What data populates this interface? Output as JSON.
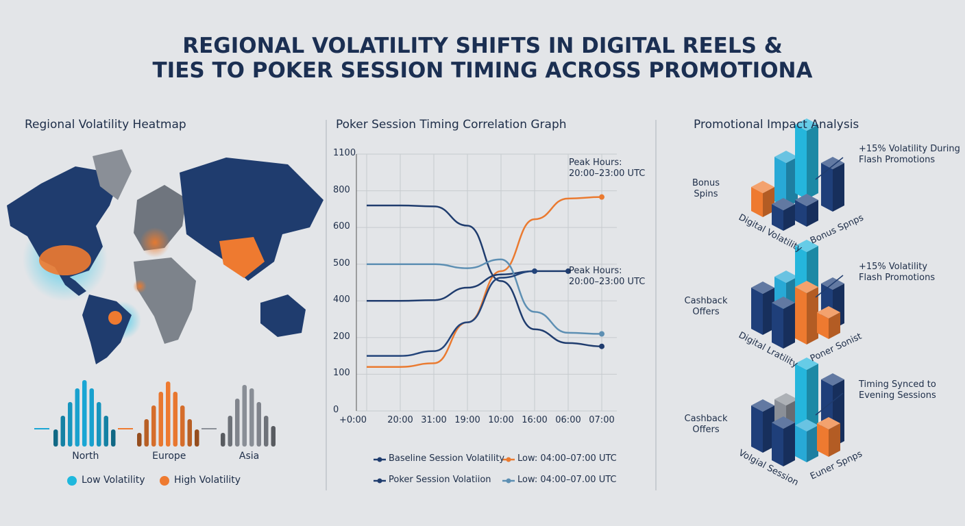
{
  "title_lines": [
    "REGIONAL VOLATILITY SHIFTS IN DIGITAL REELS &",
    "TIES TO POKER SESSION TIMING ACROSS PROMOTIONA"
  ],
  "chart_data": [
    {
      "type": "heatmap",
      "title": "Regional Volatility Heatmap",
      "regions": [
        {
          "name": "North",
          "color": "#1aa6d4",
          "values": [
            25,
            45,
            65,
            85,
            97,
            85,
            65,
            45,
            25
          ]
        },
        {
          "name": "Europe",
          "color": "#ee7a30",
          "values": [
            20,
            40,
            60,
            80,
            95,
            80,
            60,
            40,
            25
          ]
        },
        {
          "name": "Asia",
          "color": "#8a8f97",
          "values": [
            20,
            45,
            70,
            90,
            85,
            65,
            45,
            30
          ]
        }
      ],
      "legend": [
        {
          "name": "Low Volatility",
          "color": "#1fb8dd"
        },
        {
          "name": "High Volatility",
          "color": "#ee7a30"
        }
      ]
    },
    {
      "type": "line",
      "title": "Poker Session Timing Correlation Graph",
      "categories": [
        "+0:00",
        "20:00",
        "31:00",
        "19:00",
        "10:00",
        "16:00",
        "06:00",
        "07:00"
      ],
      "ylim": [
        0,
        1100
      ],
      "yticks": [
        0,
        100,
        200,
        400,
        500,
        600,
        800,
        1100
      ],
      "grid": true,
      "series": [
        {
          "name": "Baseline Session Volatility",
          "color": "#1f3c6e",
          "values": [
            720,
            720,
            715,
            610,
            454,
            245,
            185,
            176
          ]
        },
        {
          "name": "Low: 04:00–07:00 UTC",
          "color": "#ea7a30",
          "values": [
            120,
            120,
            130,
            283,
            481,
            645,
            758,
            766
          ]
        },
        {
          "name": "Poker Session Volatiion",
          "color": "#1f3c6e",
          "values": [
            400,
            400,
            402,
            436,
            472,
            481,
            481,
            null
          ]
        },
        {
          "name": "Low: 04:00–07.00 UTC",
          "color": "#5d8fb3",
          "values": [
            500,
            500,
            500,
            489,
            513,
            340,
            226,
            220
          ]
        },
        {
          "color": "#23447a",
          "values": [
            150,
            150,
            163,
            283,
            463,
            481,
            null,
            null
          ]
        }
      ],
      "annotations": [
        "Peak Hours:\n20:00–23:00 UTC",
        "Peak Hours:\n20:00–23:00 UTC"
      ]
    },
    {
      "type": "bar3d",
      "title": "Promotional Impact Analysis",
      "groups": [
        {
          "label": "Bonus\nSpins",
          "annotation": "+15% Volatility During\nFlash Promotions",
          "x_label": "Digital Volatility",
          "y_label": "Bonus Spnps",
          "bars": [
            {
              "color": "#ee7a30",
              "value": 35
            },
            {
              "color": "#28a9d6",
              "value": 65
            },
            {
              "color": "#25b6dc",
              "value": 100
            },
            {
              "color": "#1f3f7a",
              "value": 62
            },
            {
              "color": "#1f3f7a",
              "value": 30
            },
            {
              "color": "#1f3f7a",
              "value": 30
            }
          ]
        },
        {
          "label": "Cashback\nOffers",
          "annotation": "+15% Volatility\nFlash Promotions",
          "x_label": "Digital Lratility",
          "y_label": "Poner Sonist",
          "bars": [
            {
              "color": "#1f3f7a",
              "value": 60
            },
            {
              "color": "#28a9d6",
              "value": 62
            },
            {
              "color": "#25b6dc",
              "value": 95
            },
            {
              "color": "#1f3f7a",
              "value": 58
            },
            {
              "color": "#1f3f7a",
              "value": 58
            },
            {
              "color": "#ee7a30",
              "value": 75
            },
            {
              "color": "#ee7a30",
              "value": 30
            }
          ]
        },
        {
          "label": "Cashback\nOffers",
          "annotation": "Timing Synced to\nEvening Sessions",
          "x_label": "Volgial Session",
          "y_label": "Euner Spnps",
          "bars": [
            {
              "color": "#1f3f7a",
              "value": 60
            },
            {
              "color": "#8a8f97",
              "value": 55
            },
            {
              "color": "#25b6dc",
              "value": 95
            },
            {
              "color": "#1f3f7a",
              "value": 90
            },
            {
              "color": "#1f3f7a",
              "value": 55
            },
            {
              "color": "#28a9d6",
              "value": 45
            },
            {
              "color": "#ee7a30",
              "value": 40
            }
          ]
        }
      ]
    }
  ]
}
